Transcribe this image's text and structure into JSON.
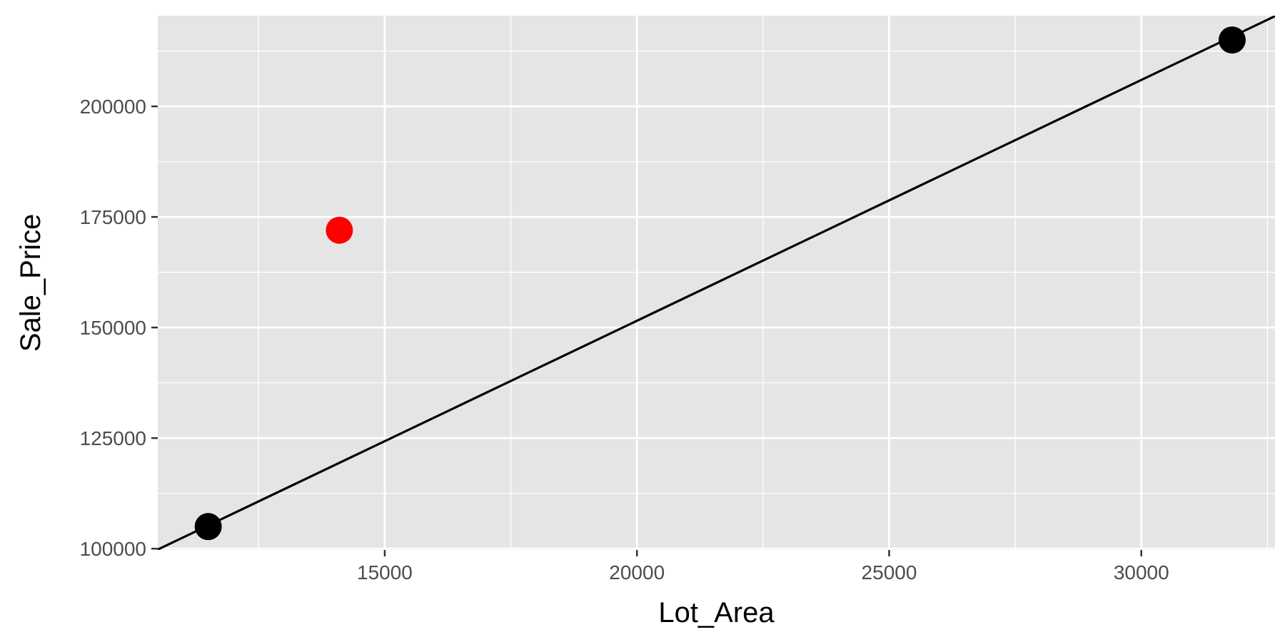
{
  "chart_data": {
    "type": "scatter",
    "title": "",
    "xlabel": "Lot_Area",
    "ylabel": "Sale_Price",
    "xlim": [
      10500,
      32650
    ],
    "ylim": [
      99700,
      220500
    ],
    "x_ticks": [
      15000,
      20000,
      25000,
      30000
    ],
    "x_minor": [
      12500,
      17500,
      22500,
      27500,
      32500
    ],
    "y_ticks": [
      100000,
      125000,
      150000,
      175000,
      200000
    ],
    "y_minor": [
      112500,
      137500,
      162500,
      187500,
      212500
    ],
    "x_tick_labels": [
      "15000",
      "20000",
      "25000",
      "30000"
    ],
    "y_tick_labels": [
      "100000",
      "125000",
      "150000",
      "175000",
      "200000"
    ],
    "grid": true,
    "legend": "none",
    "points": [
      {
        "x": 11500,
        "y": 105000,
        "color": "#000000"
      },
      {
        "x": 14100,
        "y": 172000,
        "color": "#ff0000"
      },
      {
        "x": 31800,
        "y": 215000,
        "color": "#000000"
      }
    ],
    "fit_line": {
      "x": [
        10500,
        32650
      ],
      "y": [
        99800,
        220400
      ],
      "color": "#000000"
    },
    "colors": {
      "panel_background": "#e5e5e5",
      "grid": "#ffffff",
      "highlight_point": "#ff0000",
      "point": "#000000"
    }
  }
}
